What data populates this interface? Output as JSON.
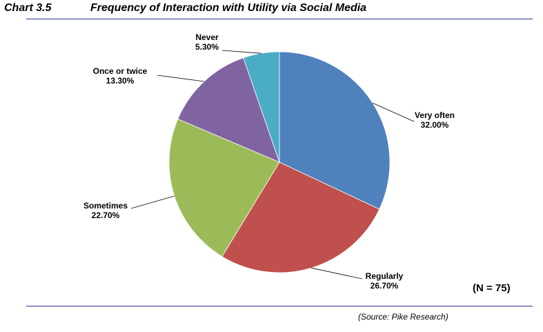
{
  "header": {
    "chart_number": "Chart 3.5",
    "title": "Frequency of Interaction with Utility via Social Media"
  },
  "note": "(N = 75)",
  "source": "(Source: Pike Research)",
  "chart_data": {
    "type": "pie",
    "title": "Frequency of Interaction with Utility via Social Media",
    "slices": [
      {
        "name": "Very often",
        "value": 32.0,
        "label": "32.00%",
        "color": "#4f81bd"
      },
      {
        "name": "Regularly",
        "value": 26.7,
        "label": "26.70%",
        "color": "#c0504d"
      },
      {
        "name": "Sometimes",
        "value": 22.7,
        "label": "22.70%",
        "color": "#9bbb59"
      },
      {
        "name": "Once or twice",
        "value": 13.3,
        "label": "13.30%",
        "color": "#8064a2"
      },
      {
        "name": "Never",
        "value": 5.3,
        "label": "5.30%",
        "color": "#4bacc6"
      }
    ],
    "start": "12 o'clock",
    "direction": "clockwise",
    "legend": "none"
  }
}
